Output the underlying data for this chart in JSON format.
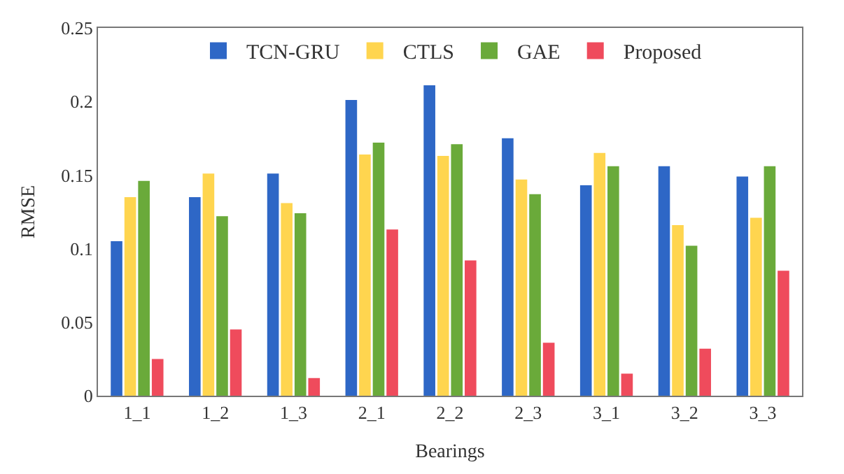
{
  "chart_data": {
    "type": "bar",
    "xlabel": "Bearings",
    "ylabel": "RMSE",
    "categories": [
      "1_1",
      "1_2",
      "1_3",
      "2_1",
      "2_2",
      "2_3",
      "3_1",
      "3_2",
      "3_3"
    ],
    "series": [
      {
        "name": "TCN-GRU",
        "color": "#2e67c6",
        "values": [
          0.105,
          0.135,
          0.151,
          0.201,
          0.211,
          0.175,
          0.143,
          0.156,
          0.149
        ]
      },
      {
        "name": "CTLS",
        "color": "#ffd54f",
        "values": [
          0.135,
          0.151,
          0.131,
          0.164,
          0.163,
          0.147,
          0.165,
          0.116,
          0.121
        ]
      },
      {
        "name": "GAE",
        "color": "#6aaa3a",
        "values": [
          0.146,
          0.122,
          0.124,
          0.172,
          0.171,
          0.137,
          0.156,
          0.102,
          0.156
        ]
      },
      {
        "name": "Proposed",
        "color": "#ef4b5c",
        "values": [
          0.025,
          0.045,
          0.012,
          0.113,
          0.092,
          0.036,
          0.015,
          0.032,
          0.085
        ]
      }
    ],
    "ylim": [
      0,
      0.25
    ],
    "yticks": [
      0,
      0.05,
      0.1,
      0.15,
      0.2,
      0.25
    ],
    "legend": "top"
  }
}
